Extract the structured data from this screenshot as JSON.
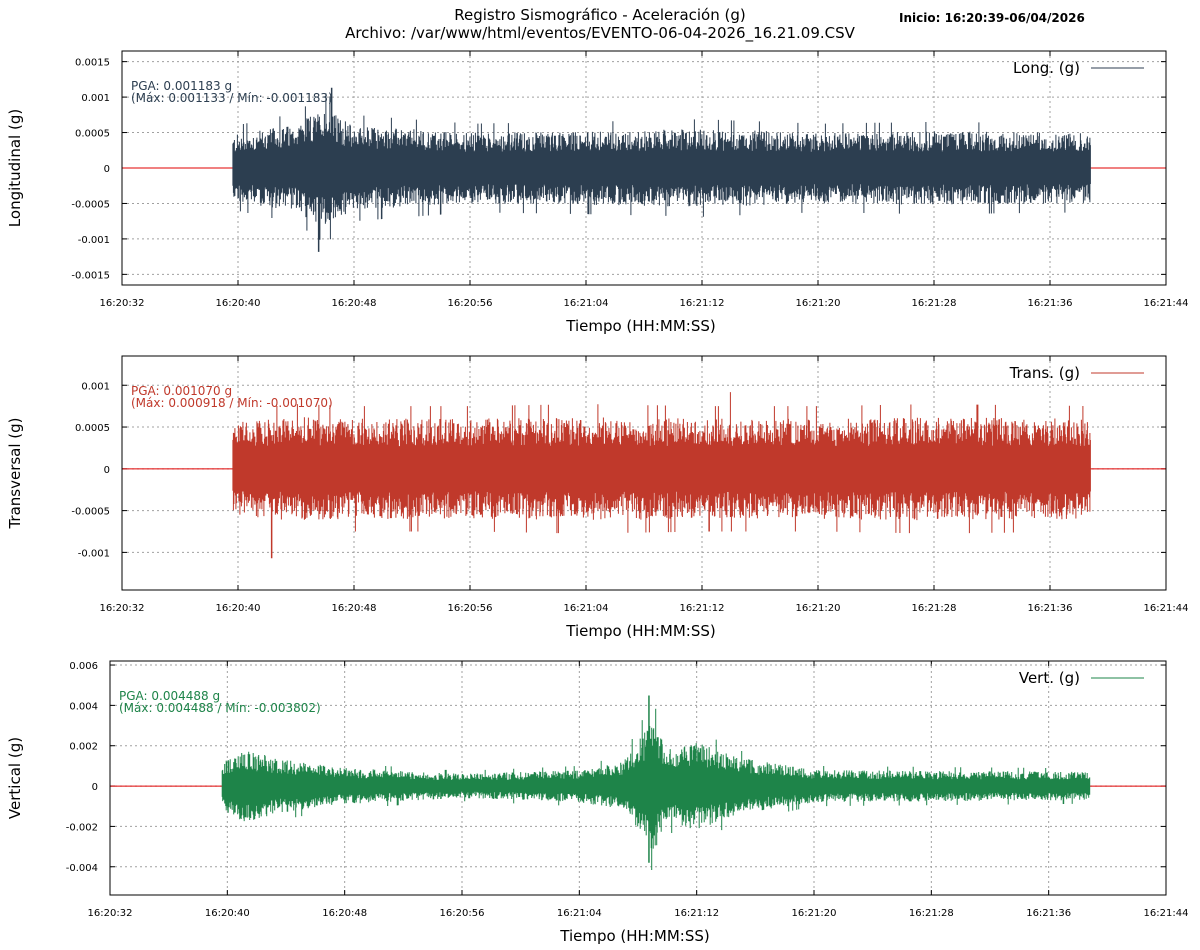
{
  "header": {
    "title_line1": "Registro Sismográfico - Aceleración (g)",
    "title_line2": "Archivo: /var/www/html/eventos/EVENTO-06-04-2026_16.21.09.CSV",
    "start_label": "Inicio: 16:20:39-06/04/2026"
  },
  "colors": {
    "zero_line": "#e00000",
    "longitudinal": "#2c3e50",
    "transversal": "#c0392b",
    "vertical": "#1e8449",
    "grid": "#a0a0a0"
  },
  "chart_data": [
    {
      "type": "line",
      "ylabel": "Longitudinal (g)",
      "xlabel": "Tiempo (HH:MM:SS)",
      "legend": "Long. (g)",
      "legend_position": "top-right",
      "grid": true,
      "xlim": [
        "16:20:32",
        "16:21:44"
      ],
      "x_ticks": [
        "16:20:32",
        "16:20:40",
        "16:20:48",
        "16:20:56",
        "16:21:04",
        "16:21:12",
        "16:21:20",
        "16:21:28",
        "16:21:36",
        "16:21:44"
      ],
      "ylim": [
        -0.00165,
        0.00165
      ],
      "y_ticks": [
        0.0015,
        0.001,
        0.0005,
        0,
        -0.0005,
        -0.001,
        -0.0015
      ],
      "y_tick_labels": [
        "0.0015",
        "0.001",
        "0.0005",
        "0",
        "-0.0005",
        "-0.001",
        "-0.0015"
      ],
      "pga_text": "PGA: 0.001183 g",
      "range_text": "(Máx: 0.001133 / Mín: -0.001183)",
      "signal_start": "16:20:39",
      "signal_end": "16:21:39",
      "pga": 0.001183,
      "max": 0.001133,
      "min": -0.001183,
      "envelope": [
        {
          "t": "16:20:39",
          "amp": 0.00045
        },
        {
          "t": "16:20:44",
          "amp": 0.00062
        },
        {
          "t": "16:20:46",
          "amp": 0.00085
        },
        {
          "t": "16:20:48",
          "amp": 0.0006
        },
        {
          "t": "16:20:56",
          "amp": 0.0005
        },
        {
          "t": "16:21:04",
          "amp": 0.00052
        },
        {
          "t": "16:21:12",
          "amp": 0.00055
        },
        {
          "t": "16:21:20",
          "amp": 0.0005
        },
        {
          "t": "16:21:28",
          "amp": 0.00052
        },
        {
          "t": "16:21:39",
          "amp": 0.0005
        }
      ]
    },
    {
      "type": "line",
      "ylabel": "Transversal (g)",
      "xlabel": "Tiempo (HH:MM:SS)",
      "legend": "Trans. (g)",
      "legend_position": "top-right",
      "grid": true,
      "xlim": [
        "16:20:32",
        "16:21:44"
      ],
      "x_ticks": [
        "16:20:32",
        "16:20:40",
        "16:20:48",
        "16:20:56",
        "16:21:04",
        "16:21:12",
        "16:21:20",
        "16:21:28",
        "16:21:36",
        "16:21:44"
      ],
      "ylim": [
        -0.00145,
        0.00135
      ],
      "y_ticks": [
        0.001,
        0.0005,
        0,
        -0.0005,
        -0.001
      ],
      "y_tick_labels": [
        "0.001",
        "0.0005",
        "0",
        "-0.0005",
        "-0.001"
      ],
      "pga_text": "PGA: 0.001070 g",
      "range_text": "(Máx: 0.000918 / Mín: -0.001070)",
      "signal_start": "16:20:39",
      "signal_end": "16:21:39",
      "pga": 0.00107,
      "max": 0.000918,
      "min": -0.00107,
      "envelope": [
        {
          "t": "16:20:39",
          "amp": 0.00055
        },
        {
          "t": "16:20:44",
          "amp": 0.00062
        },
        {
          "t": "16:20:48",
          "amp": 0.0006
        },
        {
          "t": "16:20:56",
          "amp": 0.0006
        },
        {
          "t": "16:21:04",
          "amp": 0.00062
        },
        {
          "t": "16:21:12",
          "amp": 0.0006
        },
        {
          "t": "16:21:20",
          "amp": 0.0006
        },
        {
          "t": "16:21:28",
          "amp": 0.00062
        },
        {
          "t": "16:21:39",
          "amp": 0.0006
        }
      ]
    },
    {
      "type": "line",
      "ylabel": "Vertical (g)",
      "xlabel": "Tiempo (HH:MM:SS)",
      "legend": "Vert. (g)",
      "legend_position": "top-right",
      "grid": true,
      "xlim": [
        "16:20:32",
        "16:21:44"
      ],
      "x_ticks": [
        "16:20:32",
        "16:20:40",
        "16:20:48",
        "16:20:56",
        "16:21:04",
        "16:21:12",
        "16:21:20",
        "16:21:28",
        "16:21:36",
        "16:21:44"
      ],
      "ylim": [
        -0.0054,
        0.0062
      ],
      "y_ticks": [
        0.006,
        0.004,
        0.002,
        0,
        -0.002,
        -0.004
      ],
      "y_tick_labels": [
        "0.006",
        "0.004",
        "0.002",
        "0",
        "-0.002",
        "-0.004"
      ],
      "pga_text": "PGA: 0.004488 g",
      "range_text": "(Máx: 0.004488 / Mín: -0.003802)",
      "signal_start": "16:20:39",
      "signal_end": "16:21:39",
      "pga": 0.004488,
      "max": 0.004488,
      "min": -0.003802,
      "envelope": [
        {
          "t": "16:20:39",
          "amp": 0.0009
        },
        {
          "t": "16:20:41",
          "amp": 0.0018
        },
        {
          "t": "16:20:44",
          "amp": 0.0013
        },
        {
          "t": "16:20:48",
          "amp": 0.0009
        },
        {
          "t": "16:20:56",
          "amp": 0.0006
        },
        {
          "t": "16:21:04",
          "amp": 0.0008
        },
        {
          "t": "16:21:07",
          "amp": 0.0012
        },
        {
          "t": "16:21:09",
          "amp": 0.0034
        },
        {
          "t": "16:21:10",
          "amp": 0.0018
        },
        {
          "t": "16:21:12",
          "amp": 0.0022
        },
        {
          "t": "16:21:15",
          "amp": 0.0014
        },
        {
          "t": "16:21:20",
          "amp": 0.0008
        },
        {
          "t": "16:21:39",
          "amp": 0.0007
        }
      ]
    }
  ]
}
